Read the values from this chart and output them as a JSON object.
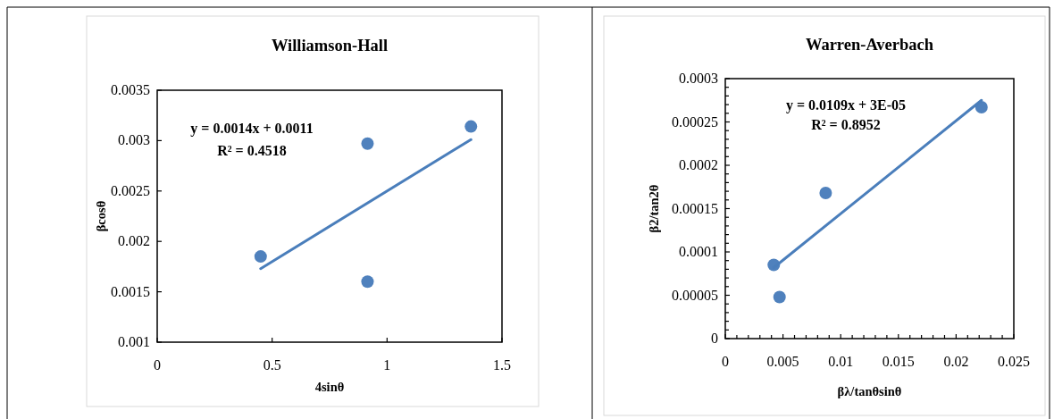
{
  "chart_data": [
    {
      "type": "scatter",
      "title": "Williamson-Hall",
      "xlabel": "4sinθ",
      "ylabel": "βcosθ",
      "series": [
        {
          "color": "#4f81bd",
          "x": [
            0.45,
            0.915,
            0.915,
            1.365
          ],
          "values": [
            0.00185,
            0.00297,
            0.0016,
            0.00314
          ],
          "marker": "circle"
        },
        {
          "type": "line",
          "color": "#4a7ebb",
          "x": [
            0.45,
            1.365
          ],
          "values": [
            0.00173,
            0.00301
          ],
          "line_style": "solid"
        }
      ],
      "annotations": [
        "y = 0.0014x + 0.0011",
        "R² = 0.4518"
      ],
      "xlim": [
        0,
        1.5
      ],
      "xticks": [
        0,
        0.5,
        1,
        1.5
      ],
      "ylim": [
        0.001,
        0.0035
      ],
      "yticks": [
        0.001,
        0.0015,
        0.002,
        0.0025,
        0.003,
        0.0035
      ],
      "grid": false
    },
    {
      "type": "scatter",
      "title": "Warren-Averbach",
      "xlabel": "βλ/tanθsinθ",
      "ylabel": "β2/tan2θ",
      "series": [
        {
          "color": "#4f81bd",
          "x": [
            0.0042,
            0.0047,
            0.0087,
            0.0222
          ],
          "values": [
            8.5e-05,
            4.8e-05,
            0.000168,
            0.000267
          ],
          "marker": "circle"
        },
        {
          "type": "line",
          "color": "#4a7ebb",
          "x": [
            0.0042,
            0.0222
          ],
          "values": [
            8.2e-05,
            0.000275
          ],
          "line_style": "solid"
        }
      ],
      "annotations": [
        "y = 0.0109x + 3E-05",
        "R² = 0.8952"
      ],
      "xlim": [
        0,
        0.025
      ],
      "xticks": [
        0,
        {
          "value": 0.001,
          "label": null
        },
        {
          "value": 0.002,
          "label": null
        },
        {
          "value": 0.003,
          "label": null
        },
        {
          "value": 0.004,
          "label": null
        },
        0.005,
        {
          "value": 0.006,
          "label": null
        },
        {
          "value": 0.007,
          "label": null
        },
        {
          "value": 0.008,
          "label": null
        },
        {
          "value": 0.009,
          "label": null
        },
        0.01,
        {
          "value": 0.011,
          "label": null
        },
        {
          "value": 0.012,
          "label": null
        },
        {
          "value": 0.013,
          "label": null
        },
        {
          "value": 0.014,
          "label": null
        },
        0.015,
        {
          "value": 0.016,
          "label": null
        },
        {
          "value": 0.017,
          "label": null
        },
        {
          "value": 0.018,
          "label": null
        },
        {
          "value": 0.019,
          "label": null
        },
        0.02,
        {
          "value": 0.021,
          "label": null
        },
        {
          "value": 0.022,
          "label": null
        },
        {
          "value": 0.023,
          "label": null
        },
        {
          "value": 0.024,
          "label": null
        },
        0.025
      ],
      "ylim": [
        0,
        0.0003
      ],
      "yticks": [
        0,
        {
          "value": 1e-05,
          "label": null
        },
        {
          "value": 2e-05,
          "label": null
        },
        {
          "value": 3e-05,
          "label": null
        },
        {
          "value": 4e-05,
          "label": null
        },
        {
          "value": 5e-05,
          "label": "0.00005"
        },
        {
          "value": 6e-05,
          "label": null
        },
        {
          "value": 7e-05,
          "label": null
        },
        {
          "value": 8e-05,
          "label": null
        },
        {
          "value": 9e-05,
          "label": null
        },
        0.0001,
        {
          "value": 0.00011,
          "label": null
        },
        {
          "value": 0.00012,
          "label": null
        },
        {
          "value": 0.00013,
          "label": null
        },
        {
          "value": 0.00014,
          "label": null
        },
        0.00015,
        {
          "value": 0.00016,
          "label": null
        },
        {
          "value": 0.00017,
          "label": null
        },
        {
          "value": 0.00018,
          "label": null
        },
        {
          "value": 0.00019,
          "label": null
        },
        0.0002,
        {
          "value": 0.00021,
          "label": null
        },
        {
          "value": 0.00022,
          "label": null
        },
        {
          "value": 0.00023,
          "label": null
        },
        {
          "value": 0.00024,
          "label": null
        },
        0.00025,
        {
          "value": 0.00026,
          "label": null
        },
        {
          "value": 0.00027,
          "label": null
        },
        {
          "value": 0.00028,
          "label": null
        },
        {
          "value": 0.00029,
          "label": null
        },
        0.0003
      ],
      "grid": false
    }
  ]
}
